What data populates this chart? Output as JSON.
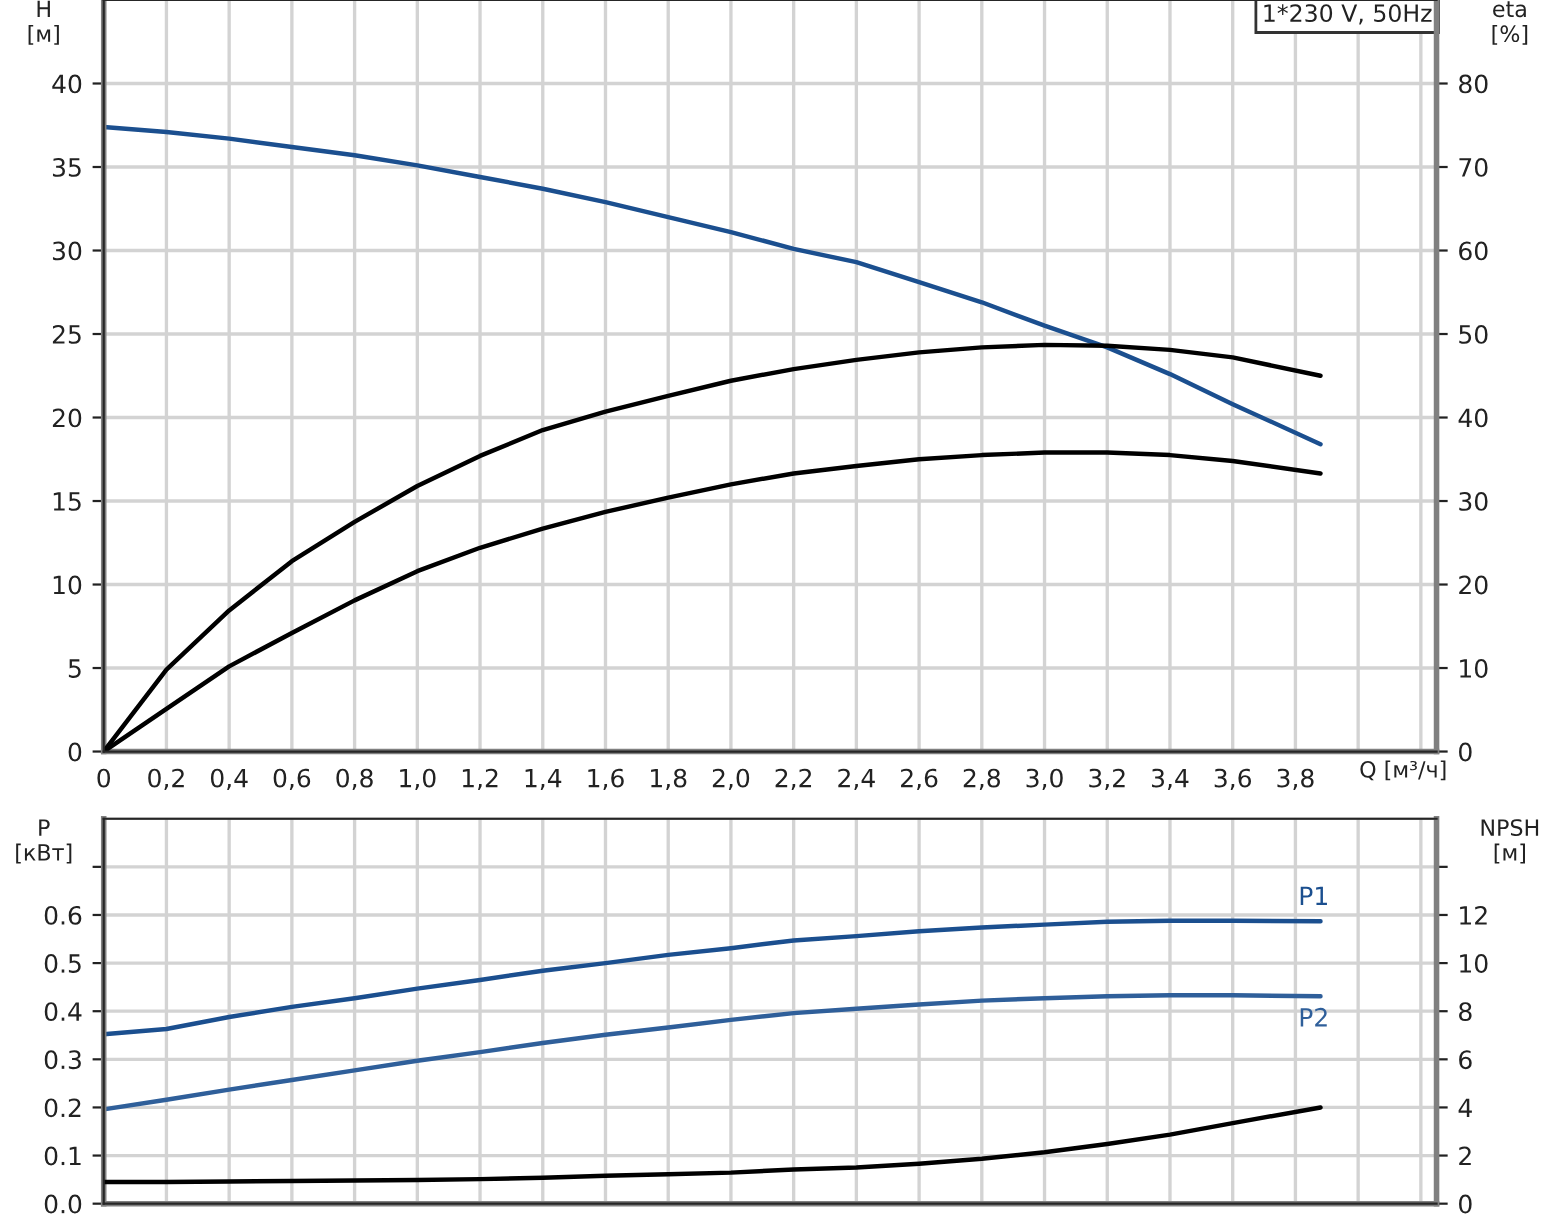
{
  "chart_data": [
    {
      "type": "line",
      "ylabel": "H\n[м]",
      "y2label": "eta\n[%]",
      "xlabel": "Q [м³/ч]",
      "annotations": [
        "1*230 V, 50Hz"
      ],
      "xlim": [
        0,
        4.25
      ],
      "xticks": [
        0,
        {
          "value": 0.2,
          "label": "0,2"
        },
        {
          "value": 0.4,
          "label": "0,4"
        },
        {
          "value": 0.6,
          "label": "0,6"
        },
        {
          "value": 0.8,
          "label": "0,8"
        },
        {
          "value": 1.0,
          "label": "1,0"
        },
        {
          "value": 1.2,
          "label": "1,2"
        },
        {
          "value": 1.4,
          "label": "1,4"
        },
        {
          "value": 1.6,
          "label": "1,6"
        },
        {
          "value": 1.8,
          "label": "1,8"
        },
        {
          "value": 2.0,
          "label": "2,0"
        },
        {
          "value": 2.2,
          "label": "2,2"
        },
        {
          "value": 2.4,
          "label": "2,4"
        },
        {
          "value": 2.6,
          "label": "2,6"
        },
        {
          "value": 2.8,
          "label": "2,8"
        },
        {
          "value": 3.0,
          "label": "3,0"
        },
        {
          "value": 3.2,
          "label": "3,2"
        },
        {
          "value": 3.4,
          "label": "3,4"
        },
        {
          "value": 3.6,
          "label": "3,6"
        },
        {
          "value": 3.8,
          "label": "3,8"
        },
        {
          "value": 4.0,
          "label": null
        },
        {
          "value": 4.2,
          "label": null
        }
      ],
      "ylim": [
        0,
        45
      ],
      "yticks": [
        0,
        5,
        10,
        15,
        20,
        25,
        30,
        35,
        40
      ],
      "y2lim": [
        0,
        90
      ],
      "y2ticks": [
        0,
        10,
        20,
        30,
        40,
        50,
        60,
        70,
        80
      ],
      "grid": true,
      "x": [
        0,
        0.2,
        0.4,
        0.6,
        0.8,
        1.0,
        1.2,
        1.4,
        1.6,
        1.8,
        2.0,
        2.2,
        2.4,
        2.6,
        2.8,
        3.0,
        3.2,
        3.4,
        3.6,
        3.88
      ],
      "series": [
        {
          "color": "#1b4f8f",
          "values": [
            37.4,
            37.1,
            36.7,
            36.2,
            35.7,
            35.1,
            34.4,
            33.7,
            32.9,
            32.0,
            31.1,
            30.1,
            29.3,
            28.1,
            26.9,
            25.5,
            24.2,
            22.6,
            20.8,
            18.4
          ]
        },
        {
          "color": "#000000",
          "axis": "y2",
          "values": [
            0,
            9.8,
            16.9,
            22.8,
            27.5,
            31.8,
            35.4,
            38.5,
            40.7,
            42.6,
            44.4,
            45.8,
            46.9,
            47.8,
            48.4,
            48.7,
            48.6,
            48.1,
            47.2,
            45.0
          ]
        },
        {
          "color": "#000000",
          "axis": "y2",
          "values": [
            0,
            5.1,
            10.2,
            14.2,
            18.1,
            21.6,
            24.4,
            26.7,
            28.7,
            30.4,
            32.0,
            33.3,
            34.2,
            35.0,
            35.5,
            35.8,
            35.8,
            35.5,
            34.8,
            33.3
          ]
        }
      ]
    },
    {
      "type": "line",
      "ylabel": "P\n[кВт]",
      "y2label": "NPSH\n[м]",
      "tick_labels": "y",
      "xlim": [
        0,
        4.25
      ],
      "xticks": [
        0,
        0.2,
        0.4,
        0.6,
        0.8,
        1.0,
        1.2,
        1.4,
        1.6,
        1.8,
        2.0,
        2.2,
        2.4,
        2.6,
        2.8,
        3.0,
        3.2,
        3.4,
        3.6,
        3.8,
        4.0,
        4.2
      ],
      "ylim": [
        0,
        0.8
      ],
      "yticks": [
        "0.0",
        0.1,
        0.2,
        0.3,
        0.4,
        0.5,
        0.6,
        {
          "value": 0.7,
          "label": null
        }
      ],
      "y2lim": [
        0,
        16
      ],
      "y2ticks": [
        0,
        2,
        4,
        6,
        8,
        10,
        12,
        {
          "value": 14,
          "label": null
        }
      ],
      "grid": true,
      "x": [
        0,
        0.2,
        0.4,
        0.6,
        0.8,
        1.0,
        1.2,
        1.4,
        1.6,
        1.8,
        2.0,
        2.2,
        2.4,
        2.6,
        2.8,
        3.0,
        3.2,
        3.4,
        3.6,
        3.88
      ],
      "series": [
        {
          "name": "P1",
          "color": "#1b4f8f",
          "values": [
            0.352,
            0.363,
            0.388,
            0.409,
            0.427,
            0.447,
            0.465,
            0.484,
            0.5,
            0.517,
            0.531,
            0.547,
            0.556,
            0.566,
            0.574,
            0.58,
            0.586,
            0.588,
            0.588,
            0.587
          ]
        },
        {
          "name": "P2",
          "color": "#2f5f9a",
          "values": [
            0.196,
            0.216,
            0.237,
            0.257,
            0.277,
            0.297,
            0.315,
            0.334,
            0.351,
            0.366,
            0.382,
            0.396,
            0.405,
            0.414,
            0.422,
            0.427,
            0.431,
            0.433,
            0.433,
            0.431
          ]
        },
        {
          "color": "#000000",
          "axis": "y2",
          "values": [
            0.9,
            0.9,
            0.92,
            0.94,
            0.96,
            0.98,
            1.02,
            1.08,
            1.16,
            1.22,
            1.29,
            1.42,
            1.5,
            1.66,
            1.87,
            2.14,
            2.48,
            2.87,
            3.35,
            4.0
          ]
        }
      ]
    }
  ]
}
